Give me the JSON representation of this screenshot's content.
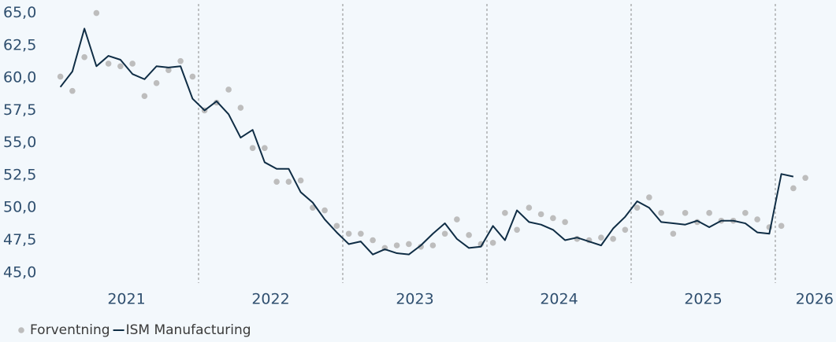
{
  "chart_data": {
    "type": "line",
    "categories": [
      null,
      null,
      null,
      null,
      null,
      null,
      null,
      null,
      null,
      null,
      null,
      null,
      null,
      null,
      null,
      null,
      null,
      null,
      null,
      null,
      null,
      null,
      null,
      null,
      null,
      null,
      null,
      null,
      null,
      null,
      null,
      null,
      null,
      null,
      null,
      null,
      null,
      null,
      null,
      null,
      null,
      null,
      null,
      null,
      null,
      null,
      null,
      null,
      null,
      null,
      null,
      null,
      null,
      null,
      null,
      null,
      null,
      null,
      null,
      null,
      null,
      null,
      null
    ],
    "xticks": [
      "2021",
      "2022",
      "2023",
      "2024",
      "2025",
      "2026"
    ],
    "series": [
      {
        "name": "Forventning",
        "color": "#bdbdbd",
        "style": "dots",
        "values": [
          60.1,
          59.0,
          61.6,
          65.0,
          61.1,
          60.9,
          61.1,
          58.6,
          59.6,
          60.6,
          61.3,
          60.1,
          57.5,
          58.1,
          59.1,
          57.7,
          54.6,
          54.6,
          52.0,
          52.0,
          52.1,
          50.0,
          49.8,
          48.6,
          48.0,
          48.0,
          47.5,
          46.9,
          47.1,
          47.2,
          47.0,
          47.1,
          48.0,
          49.1,
          47.9,
          47.2,
          47.3,
          49.6,
          48.3,
          50.0,
          49.5,
          49.2,
          48.9,
          47.6,
          47.5,
          47.7,
          47.6,
          48.3,
          50.0,
          50.8,
          49.6,
          48.0,
          49.6,
          48.9,
          49.6,
          49.0,
          49.0,
          49.6,
          49.1,
          48.5,
          48.6,
          51.5,
          52.3
        ]
      },
      {
        "name": "ISM Manufacturing",
        "color": "#0f2d45",
        "style": "line",
        "values": [
          59.3,
          60.5,
          63.8,
          60.9,
          61.7,
          61.4,
          60.3,
          59.9,
          60.9,
          60.8,
          60.9,
          58.4,
          57.5,
          58.2,
          57.2,
          55.4,
          56.0,
          53.5,
          53.0,
          53.0,
          51.2,
          50.4,
          49.1,
          48.1,
          47.2,
          47.4,
          46.4,
          46.8,
          46.5,
          46.4,
          47.1,
          48.0,
          48.8,
          47.6,
          46.9,
          47.0,
          48.6,
          47.5,
          49.8,
          48.9,
          48.7,
          48.3,
          47.5,
          47.7,
          47.4,
          47.1,
          48.4,
          49.3,
          50.5,
          50.0,
          48.9,
          48.8,
          48.7,
          49.0,
          48.5,
          49.0,
          49.0,
          48.8,
          48.1,
          48.0,
          52.6,
          52.4,
          null
        ]
      }
    ],
    "ylim": [
      44.2,
      65.7
    ],
    "yticks": [
      {
        "value": 45,
        "label": "45,0"
      },
      {
        "value": 47.5,
        "label": "47,5"
      },
      {
        "value": 50,
        "label": "50,0"
      },
      {
        "value": 52.5,
        "label": "52,5"
      },
      {
        "value": 55,
        "label": "55,0"
      },
      {
        "value": 57.5,
        "label": "57,5"
      },
      {
        "value": 60,
        "label": "60,0"
      },
      {
        "value": 62.5,
        "label": "62,5"
      },
      {
        "value": 65,
        "label": "65,0"
      }
    ],
    "grid": false
  }
}
